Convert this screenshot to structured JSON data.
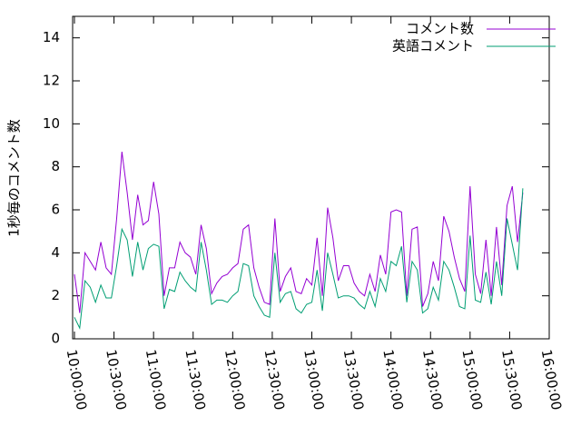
{
  "chart_data": {
    "type": "line",
    "ylabel": "1秒毎のコメント数",
    "x": [
      "10:00:00",
      "10:04:00",
      "10:08:00",
      "10:12:00",
      "10:16:00",
      "10:20:00",
      "10:24:00",
      "10:28:00",
      "10:32:00",
      "10:36:00",
      "10:40:00",
      "10:44:00",
      "10:48:00",
      "10:52:00",
      "10:56:00",
      "11:00:00",
      "11:04:00",
      "11:08:00",
      "11:12:00",
      "11:16:00",
      "11:20:00",
      "11:24:00",
      "11:28:00",
      "11:32:00",
      "11:36:00",
      "11:40:00",
      "11:44:00",
      "11:48:00",
      "11:52:00",
      "11:56:00",
      "12:00:00",
      "12:04:00",
      "12:08:00",
      "12:12:00",
      "12:16:00",
      "12:20:00",
      "12:24:00",
      "12:28:00",
      "12:32:00",
      "12:36:00",
      "12:40:00",
      "12:44:00",
      "12:48:00",
      "12:52:00",
      "12:56:00",
      "13:00:00",
      "13:04:00",
      "13:08:00",
      "13:12:00",
      "13:16:00",
      "13:20:00",
      "13:24:00",
      "13:28:00",
      "13:32:00",
      "13:36:00",
      "13:40:00",
      "13:44:00",
      "13:48:00",
      "13:52:00",
      "13:56:00",
      "14:00:00",
      "14:04:00",
      "14:08:00",
      "14:12:00",
      "14:16:00",
      "14:20:00",
      "14:24:00",
      "14:28:00",
      "14:32:00",
      "14:36:00",
      "14:40:00",
      "14:44:00",
      "14:48:00",
      "14:52:00",
      "14:56:00",
      "15:00:00",
      "15:04:00",
      "15:08:00",
      "15:12:00",
      "15:16:00",
      "15:20:00",
      "15:24:00",
      "15:28:00",
      "15:32:00",
      "15:36:00",
      "15:40:00"
    ],
    "series": [
      {
        "name": "コメント数",
        "color": "#9400d3",
        "values": [
          3.0,
          1.2,
          4.0,
          3.6,
          3.2,
          4.5,
          3.3,
          3.0,
          5.6,
          8.7,
          6.8,
          4.6,
          6.7,
          5.3,
          5.5,
          7.3,
          5.8,
          2.0,
          3.3,
          3.3,
          4.5,
          4.0,
          3.8,
          3.0,
          5.3,
          4.2,
          2.1,
          2.6,
          2.9,
          3.0,
          3.3,
          3.5,
          5.1,
          5.3,
          3.3,
          2.4,
          1.7,
          1.6,
          5.6,
          2.2,
          2.9,
          3.3,
          2.2,
          2.1,
          2.8,
          2.5,
          4.7,
          2.0,
          6.1,
          4.7,
          2.7,
          3.4,
          3.4,
          2.6,
          2.2,
          2.0,
          3.0,
          2.2,
          3.9,
          3.0,
          5.9,
          6.0,
          5.9,
          2.0,
          5.1,
          5.2,
          1.5,
          2.1,
          3.6,
          2.7,
          5.7,
          5.0,
          3.8,
          2.8,
          2.2,
          7.1,
          3.0,
          2.1,
          4.6,
          2.0,
          5.2,
          2.5,
          6.2,
          7.1,
          4.5,
          6.8
        ]
      },
      {
        "name": "英語コメント",
        "color": "#009e73",
        "values": [
          1.0,
          0.5,
          2.7,
          2.4,
          1.7,
          2.5,
          1.9,
          1.9,
          3.4,
          5.1,
          4.6,
          2.9,
          4.5,
          3.2,
          4.2,
          4.4,
          4.3,
          1.4,
          2.3,
          2.2,
          3.1,
          2.7,
          2.4,
          2.2,
          4.5,
          3.2,
          1.6,
          1.8,
          1.8,
          1.7,
          2.0,
          2.2,
          3.5,
          3.4,
          2.0,
          1.5,
          1.1,
          1.0,
          4.0,
          1.7,
          2.1,
          2.2,
          1.4,
          1.2,
          1.6,
          1.7,
          3.2,
          1.3,
          4.0,
          3.0,
          1.9,
          2.0,
          2.0,
          1.9,
          1.6,
          1.4,
          2.2,
          1.5,
          2.8,
          2.2,
          3.6,
          3.4,
          4.3,
          1.7,
          3.6,
          3.2,
          1.2,
          1.4,
          2.4,
          1.8,
          3.6,
          3.2,
          2.4,
          1.5,
          1.4,
          4.8,
          1.8,
          1.7,
          3.1,
          1.6,
          3.6,
          2.0,
          5.6,
          4.4,
          3.2,
          7.0
        ]
      }
    ],
    "xlim": [
      "10:00:00",
      "16:00:00"
    ],
    "xticks": [
      "10:00:00",
      "10:30:00",
      "11:00:00",
      "11:30:00",
      "12:00:00",
      "12:30:00",
      "13:00:00",
      "13:30:00",
      "14:00:00",
      "14:30:00",
      "15:00:00",
      "15:30:00",
      "16:00:00"
    ],
    "ylim": [
      0,
      15
    ],
    "yticks": [
      0,
      2,
      4,
      6,
      8,
      10,
      12,
      14
    ],
    "legend": "top-right"
  }
}
